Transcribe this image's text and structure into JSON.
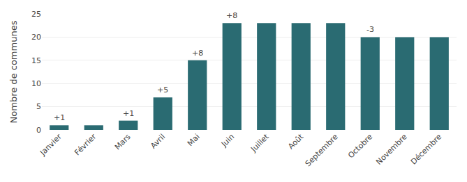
{
  "chart_data": {
    "type": "bar",
    "ylabel": "Nombre de communes",
    "categories": [
      "Janvier",
      "Février",
      "Mars",
      "Avril",
      "Mai",
      "Juin",
      "Juillet",
      "Août",
      "Septembre",
      "Octobre",
      "Novembre",
      "Décembre"
    ],
    "values": [
      1,
      1,
      2,
      7,
      15,
      23,
      23,
      23,
      23,
      20,
      20,
      20
    ],
    "annotations": [
      "+1",
      null,
      "+1",
      "+5",
      "+8",
      "+8",
      null,
      null,
      null,
      "-3",
      null,
      null
    ],
    "color": "#2a6b72",
    "ylim": [
      0,
      25
    ],
    "yticks": [
      0,
      5,
      10,
      15,
      20,
      25
    ],
    "grid": true
  }
}
